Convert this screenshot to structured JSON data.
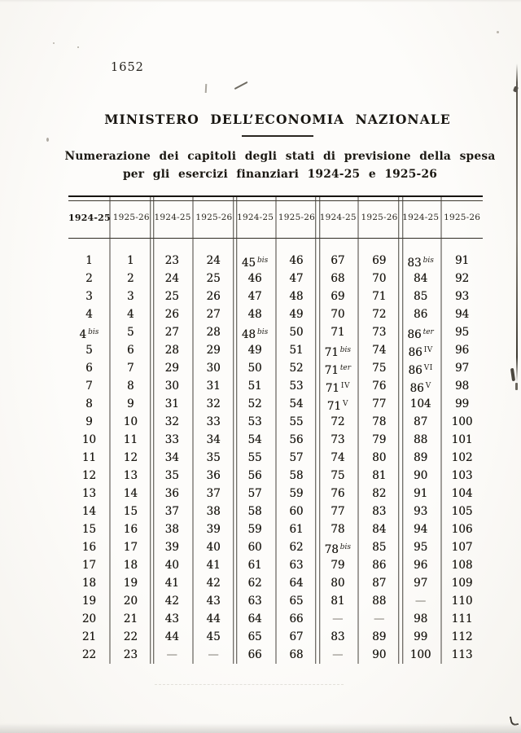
{
  "page_number": "1652",
  "header": {
    "title": "MINISTERO DELL’ECONOMIA NAZIONALE",
    "subtitle_line1": "Numerazione dei capitoli degli stati di previsione della spesa",
    "subtitle_line2": "per gli esercizi finanziari 1924-25 e 1925-26"
  },
  "table": {
    "column_headers": [
      "1924-25",
      "1925-26",
      "1924-25",
      "1925-26",
      "1924-25",
      "1925-26",
      "1924-25",
      "1925-26",
      "1924-25",
      "1925-26"
    ],
    "rows": [
      [
        "1",
        "1",
        "23",
        "24",
        "45*bis",
        "46",
        "67",
        "69",
        "83*bis",
        "91"
      ],
      [
        "2",
        "2",
        "24",
        "25",
        "46",
        "47",
        "68",
        "70",
        "84",
        "92"
      ],
      [
        "3",
        "3",
        "25",
        "26",
        "47",
        "48",
        "69",
        "71",
        "85",
        "93"
      ],
      [
        "4",
        "4",
        "26",
        "27",
        "48",
        "49",
        "70",
        "72",
        "86",
        "94"
      ],
      [
        "4*bis",
        "5",
        "27",
        "28",
        "48*bis",
        "50",
        "71",
        "73",
        "86*ter",
        "95"
      ],
      [
        "5",
        "6",
        "28",
        "29",
        "49",
        "51",
        "71*bis",
        "74",
        "86*IV",
        "96"
      ],
      [
        "6",
        "7",
        "29",
        "30",
        "50",
        "52",
        "71*ter",
        "75",
        "86*VI",
        "97"
      ],
      [
        "7",
        "8",
        "30",
        "31",
        "51",
        "53",
        "71*IV",
        "76",
        "86*V",
        "98"
      ],
      [
        "8",
        "9",
        "31",
        "32",
        "52",
        "54",
        "71*V",
        "77",
        "104",
        "99"
      ],
      [
        "9",
        "10",
        "32",
        "33",
        "53",
        "55",
        "72",
        "78",
        "87",
        "100"
      ],
      [
        "10",
        "11",
        "33",
        "34",
        "54",
        "56",
        "73",
        "79",
        "88",
        "101"
      ],
      [
        "11",
        "12",
        "34",
        "35",
        "55",
        "57",
        "74",
        "80",
        "89",
        "102"
      ],
      [
        "12",
        "13",
        "35",
        "36",
        "56",
        "58",
        "75",
        "81",
        "90",
        "103"
      ],
      [
        "13",
        "14",
        "36",
        "37",
        "57",
        "59",
        "76",
        "82",
        "91",
        "104"
      ],
      [
        "14",
        "15",
        "37",
        "38",
        "58",
        "60",
        "77",
        "83",
        "93",
        "105"
      ],
      [
        "15",
        "16",
        "38",
        "39",
        "59",
        "61",
        "78",
        "84",
        "94",
        "106"
      ],
      [
        "16",
        "17",
        "39",
        "40",
        "60",
        "62",
        "78*bis",
        "85",
        "95",
        "107"
      ],
      [
        "17",
        "18",
        "40",
        "41",
        "61",
        "63",
        "79",
        "86",
        "96",
        "108"
      ],
      [
        "18",
        "19",
        "41",
        "42",
        "62",
        "64",
        "80",
        "87",
        "97",
        "109"
      ],
      [
        "19",
        "20",
        "42",
        "43",
        "63",
        "65",
        "81",
        "88",
        "—",
        "110"
      ],
      [
        "20",
        "21",
        "43",
        "44",
        "64",
        "66",
        "—",
        "—",
        "98",
        "111"
      ],
      [
        "21",
        "22",
        "44",
        "45",
        "65",
        "67",
        "83",
        "89",
        "99",
        "112"
      ],
      [
        "22",
        "23",
        "—",
        "—",
        "66",
        "68",
        "—",
        "90",
        "100",
        "113"
      ]
    ]
  },
  "ink_color": "#211e18"
}
